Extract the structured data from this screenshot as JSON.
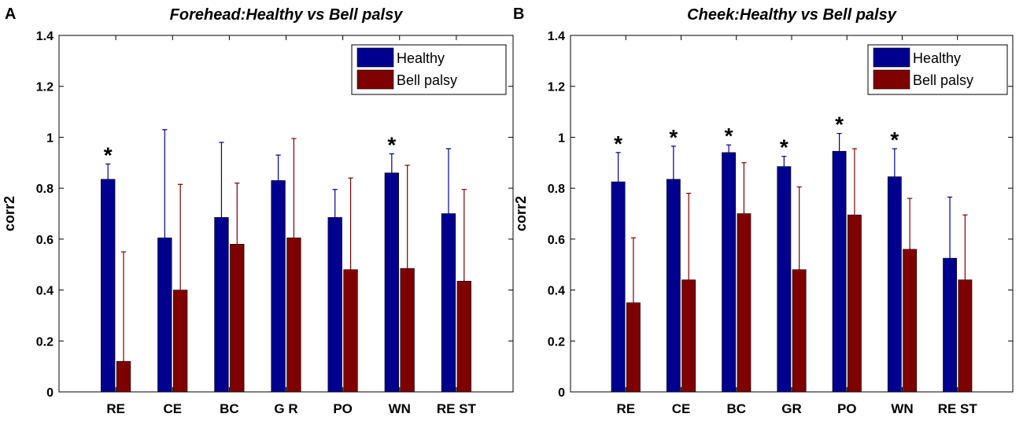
{
  "colors": {
    "healthy": "#00008f",
    "bell": "#7f0000",
    "axis": "#000000"
  },
  "chart_data": [
    {
      "panel": "A",
      "type": "bar",
      "title": "Forehead:Healthy vs Bell palsy",
      "xlabel": "",
      "ylabel": "corr2",
      "ylim": [
        0,
        1.4
      ],
      "yticks": [
        0,
        0.2,
        0.4,
        0.6,
        0.8,
        1,
        1.2,
        1.4
      ],
      "ytick_labels": [
        "0",
        "0.2",
        "0.4",
        "0.6",
        "0.8",
        "1",
        "1.2",
        "1.4"
      ],
      "categories": [
        "RE",
        "CE",
        "BC",
        "GR",
        "PO",
        "WN",
        "REST"
      ],
      "category_labels": [
        "RE",
        "CE",
        "BC",
        "G R",
        "PO",
        "WN",
        "RE ST"
      ],
      "legend": {
        "position": "top-right",
        "entries": [
          "Healthy",
          "Bell palsy"
        ]
      },
      "series": [
        {
          "name": "Healthy",
          "values": [
            0.835,
            0.605,
            0.685,
            0.83,
            0.685,
            0.86,
            0.7
          ],
          "error_upper": [
            0.895,
            1.03,
            0.98,
            0.93,
            0.795,
            0.935,
            0.955
          ]
        },
        {
          "name": "Bell palsy",
          "values": [
            0.12,
            0.4,
            0.58,
            0.605,
            0.48,
            0.485,
            0.435
          ],
          "error_upper": [
            0.55,
            0.815,
            0.82,
            0.995,
            0.84,
            0.89,
            0.795
          ]
        }
      ],
      "significance": [
        "*",
        "",
        "",
        "",
        "",
        "*",
        ""
      ]
    },
    {
      "panel": "B",
      "type": "bar",
      "title": "Cheek:Healthy vs Bell palsy",
      "xlabel": "",
      "ylabel": "corr2",
      "ylim": [
        0,
        1.4
      ],
      "yticks": [
        0,
        0.2,
        0.4,
        0.6,
        0.8,
        1,
        1.2,
        1.4
      ],
      "ytick_labels": [
        "0",
        "0.2",
        "0.4",
        "0.6",
        "0.8",
        "1",
        "1.2",
        "1.4"
      ],
      "categories": [
        "RE",
        "CE",
        "BC",
        "GR",
        "PO",
        "WN",
        "REST"
      ],
      "category_labels": [
        "RE",
        "CE",
        "BC",
        "GR",
        "PO",
        "WN",
        "RE ST"
      ],
      "legend": {
        "position": "top-right",
        "entries": [
          "Healthy",
          "Bell palsy"
        ]
      },
      "series": [
        {
          "name": "Healthy",
          "values": [
            0.825,
            0.835,
            0.94,
            0.885,
            0.945,
            0.845,
            0.525
          ],
          "error_upper": [
            0.94,
            0.965,
            0.97,
            0.925,
            1.015,
            0.955,
            0.765
          ]
        },
        {
          "name": "Bell palsy",
          "values": [
            0.35,
            0.44,
            0.7,
            0.48,
            0.695,
            0.56,
            0.44
          ],
          "error_upper": [
            0.605,
            0.78,
            0.9,
            0.805,
            0.955,
            0.76,
            0.695
          ]
        }
      ],
      "significance": [
        "*",
        "*",
        "*",
        "*",
        "*",
        "*",
        ""
      ]
    }
  ]
}
